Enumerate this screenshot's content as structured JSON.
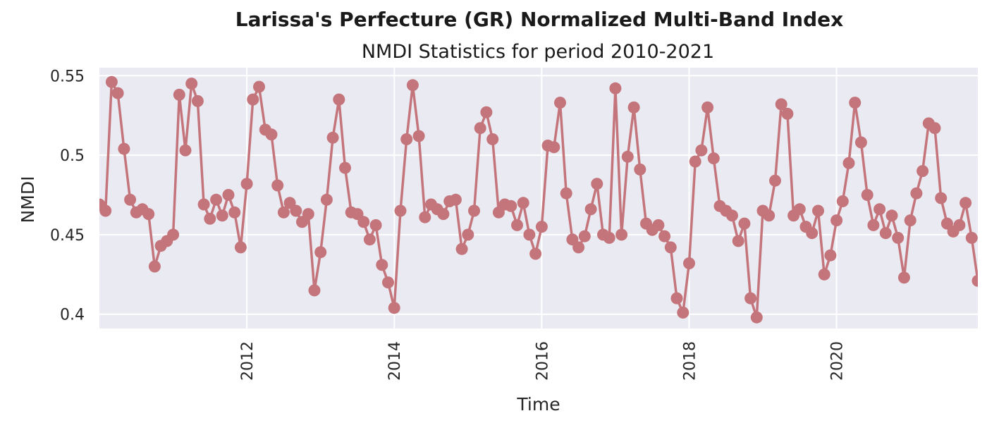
{
  "colors": {
    "background": "#ffffff",
    "plot_background": "#eaeaf2",
    "grid": "#ffffff",
    "series": "#c4757b",
    "text": "#262626"
  },
  "chart_data": {
    "type": "line",
    "title": "Larissa's Perfecture (GR) Normalized Multi-Band Index",
    "subtitle": "NMDI Statistics for period 2010-2021",
    "xlabel": "Time",
    "ylabel": "NMDI",
    "xlim": [
      "2010-01",
      "2021-12"
    ],
    "ylim": [
      0.391,
      0.555
    ],
    "x_ticks": [
      2012,
      2014,
      2016,
      2018,
      2020
    ],
    "y_ticks": [
      0.4,
      0.45,
      0.5,
      0.55
    ],
    "y_tick_labels": [
      "0.4",
      "0.45",
      "0.5",
      "0.55"
    ],
    "grid": true,
    "marker": "circle",
    "x_start": "2010-01",
    "x_frequency": "monthly",
    "values": [
      0.469,
      0.465,
      0.546,
      0.539,
      0.504,
      0.472,
      0.464,
      0.466,
      0.463,
      0.43,
      0.443,
      0.446,
      0.45,
      0.538,
      0.503,
      0.545,
      0.534,
      0.469,
      0.46,
      0.472,
      0.462,
      0.475,
      0.464,
      0.442,
      0.482,
      0.535,
      0.543,
      0.516,
      0.513,
      0.481,
      0.464,
      0.47,
      0.465,
      0.458,
      0.463,
      0.415,
      0.439,
      0.472,
      0.511,
      0.535,
      0.492,
      0.464,
      0.463,
      0.458,
      0.447,
      0.456,
      0.431,
      0.42,
      0.404,
      0.465,
      0.51,
      0.544,
      0.512,
      0.461,
      0.469,
      0.466,
      0.463,
      0.471,
      0.472,
      0.441,
      0.45,
      0.465,
      0.517,
      0.527,
      0.51,
      0.464,
      0.469,
      0.468,
      0.456,
      0.47,
      0.45,
      0.438,
      0.455,
      0.506,
      0.505,
      0.533,
      0.476,
      0.447,
      0.442,
      0.449,
      0.466,
      0.482,
      0.45,
      0.448,
      0.542,
      0.45,
      0.499,
      0.53,
      0.491,
      0.457,
      0.453,
      0.456,
      0.449,
      0.442,
      0.41,
      0.401,
      0.432,
      0.496,
      0.503,
      0.53,
      0.498,
      0.468,
      0.465,
      0.462,
      0.446,
      0.457,
      0.41,
      0.398,
      0.465,
      0.462,
      0.484,
      0.532,
      0.526,
      0.462,
      0.466,
      0.455,
      0.451,
      0.465,
      0.425,
      0.437,
      0.459,
      0.471,
      0.495,
      0.533,
      0.508,
      0.475,
      0.456,
      0.466,
      0.451,
      0.462,
      0.448,
      0.423,
      0.459,
      0.476,
      0.49,
      0.52,
      0.517,
      0.473,
      0.457,
      0.452,
      0.456,
      0.47,
      0.448,
      0.421
    ]
  }
}
